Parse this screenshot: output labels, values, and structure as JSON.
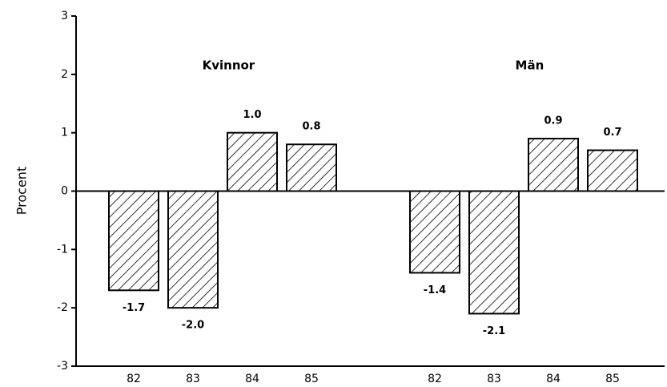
{
  "chart_data": {
    "type": "bar",
    "ylabel": "Procent",
    "ylim": [
      -3,
      3
    ],
    "yticks": [
      3,
      2,
      1,
      0,
      -1,
      -2,
      -3
    ],
    "color": "#000000",
    "hatch": true,
    "groups": [
      {
        "name": "Kvinnor",
        "categories": [
          "82",
          "83",
          "84",
          "85"
        ],
        "values": [
          -1.7,
          -2.0,
          1.0,
          0.8
        ],
        "value_labels": [
          "-1.7",
          "-2.0",
          "1.0",
          "0.8"
        ]
      },
      {
        "name": "Män",
        "categories": [
          "82",
          "83",
          "84",
          "85"
        ],
        "values": [
          -1.4,
          -2.1,
          0.9,
          0.7
        ],
        "value_labels": [
          "-1.4",
          "-2.1",
          "0.9",
          "0.7"
        ]
      }
    ]
  }
}
